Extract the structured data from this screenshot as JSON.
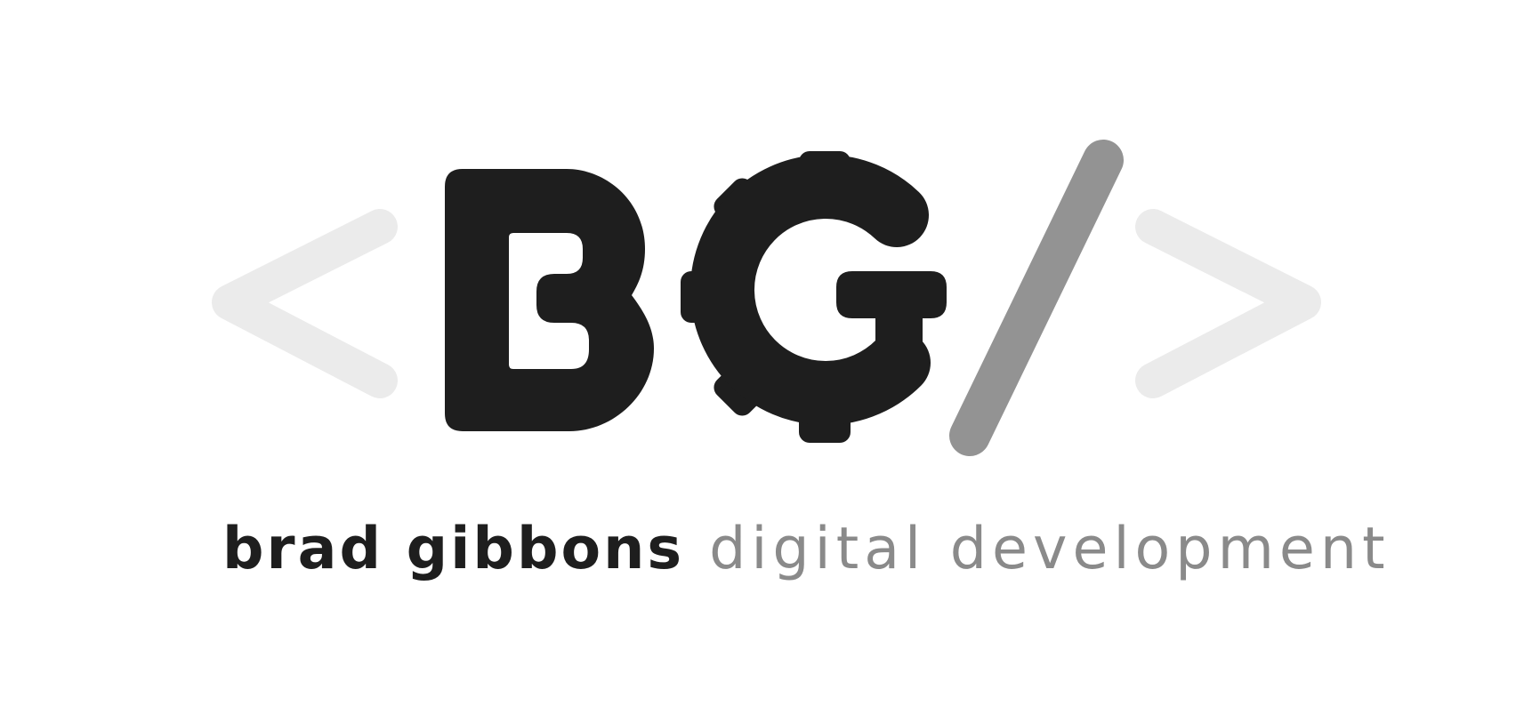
{
  "brand": {
    "mark_letters": "BG",
    "name_text": "brad gibbons",
    "suffix_text": "digital development"
  },
  "colors": {
    "dark": "#1e1e1e",
    "slash": "#939393",
    "brackets": "#ebebeb",
    "suffix": "#8a8a8a",
    "background": "#ffffff"
  },
  "icons": [
    "left-angle-bracket-icon",
    "b-letter-icon",
    "gear-g-icon",
    "slash-icon",
    "right-angle-bracket-icon"
  ]
}
